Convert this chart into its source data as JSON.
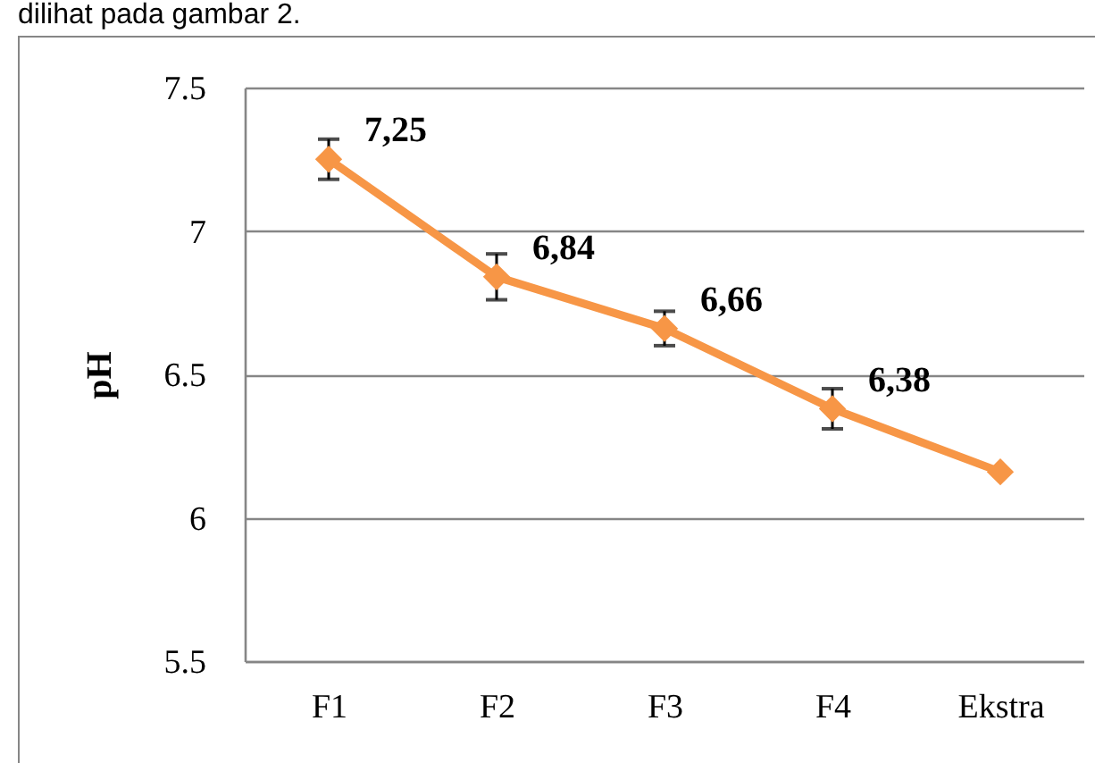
{
  "chart_data": {
    "type": "line",
    "annotations": [
      "dilihat pada gambar 2."
    ],
    "ylabel": "pH",
    "categories": [
      "F1",
      "F2",
      "F3",
      "F4",
      "Ekstra"
    ],
    "ylim": [
      5.5,
      7.5
    ],
    "yticks": [
      5.5,
      6,
      6.5,
      7,
      7.5
    ],
    "grid": "y",
    "marker": "diamond",
    "line_style": "solid",
    "series": [
      {
        "color": "#f79646",
        "values": [
          7.25,
          6.84,
          6.66,
          6.38,
          6.16
        ],
        "errors": [
          0.07,
          0.08,
          0.06,
          0.07,
          null
        ],
        "value_labels": [
          "7,25",
          "6,84",
          "6,66",
          "6,38",
          null
        ]
      }
    ]
  }
}
